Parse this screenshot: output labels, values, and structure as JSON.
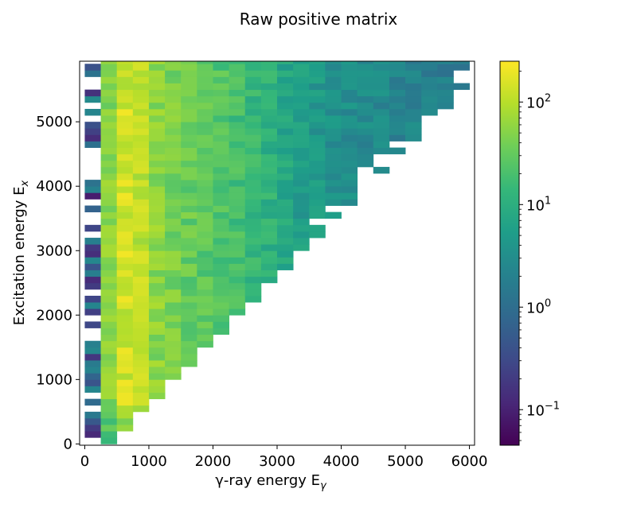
{
  "chart_data": {
    "type": "heatmap",
    "title": "Raw positive matrix",
    "xlabel_prefix": "γ-ray energy E",
    "xlabel_sub": "γ",
    "ylabel_prefix": "Excitation energy E",
    "ylabel_sub": "x",
    "x_range": [
      -80,
      6080
    ],
    "y_range": [
      -20,
      5940
    ],
    "x_ticks": [
      0,
      1000,
      2000,
      3000,
      4000,
      5000,
      6000
    ],
    "x_tick_labels": [
      "0",
      "1000",
      "2000",
      "3000",
      "4000",
      "5000",
      "6000"
    ],
    "y_ticks": [
      0,
      1000,
      2000,
      3000,
      4000,
      5000
    ],
    "y_tick_labels": [
      "0",
      "1000",
      "2000",
      "3000",
      "4000",
      "5000"
    ],
    "bin_width_x": 250,
    "bin_width_y": 100,
    "colorbar": {
      "scale": "log",
      "vmin": 0.045,
      "vmax": 250,
      "ticks": [
        0.1,
        1,
        10,
        100
      ],
      "tick_bases": [
        "10",
        "10",
        "10",
        "10"
      ],
      "tick_exponents": [
        "−1",
        "0",
        "1",
        "2"
      ]
    },
    "colormap": [
      "#440154",
      "#482878",
      "#3e4a89",
      "#31688e",
      "#26828e",
      "#1f9e89",
      "#35b779",
      "#6ece58",
      "#b5de2b",
      "#fde725"
    ],
    "cells_description_profile": {
      "columns_x_start": [
        0,
        250,
        500,
        750,
        1000,
        1250,
        1500,
        1750,
        2000,
        2250,
        2500,
        2750,
        3000,
        3250,
        3500,
        3750,
        4000,
        4250,
        4500,
        4750,
        5000,
        5250,
        5500,
        5750
      ],
      "column_peak_values": [
        1.5,
        55,
        150,
        110,
        60,
        45,
        35,
        30,
        25,
        20,
        15,
        12,
        8,
        6,
        5,
        4,
        3.5,
        3,
        3,
        2.5,
        2.5,
        2,
        2,
        2
      ],
      "column_max_y": [
        5800,
        5900,
        5900,
        5900,
        5900,
        5900,
        5900,
        5900,
        5900,
        5900,
        5900,
        5900,
        5900,
        5900,
        5900,
        5900,
        5900,
        5900,
        5900,
        5900,
        5900,
        5900,
        5900,
        5900
      ],
      "diagonal_offset": 300
    }
  }
}
